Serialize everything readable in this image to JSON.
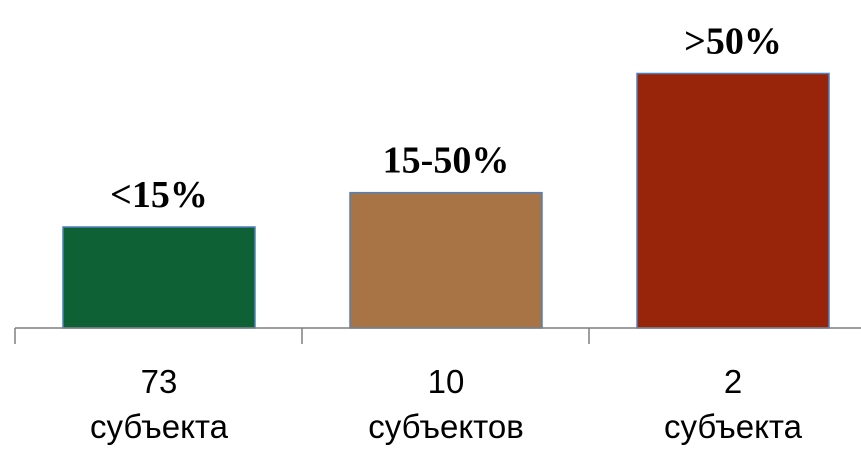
{
  "chart_data": {
    "type": "bar",
    "categories": [
      [
        "73",
        "субъекта"
      ],
      [
        "10",
        "субъектов"
      ],
      [
        "2",
        "субъекта"
      ]
    ],
    "data_labels": [
      "<15%",
      "15-50%",
      ">50%"
    ],
    "values": [
      1,
      1.34,
      2.52
    ],
    "colors": [
      "#0e6135",
      "#a97445",
      "#982509"
    ],
    "bar_border_color": "#4f81bd",
    "axis_color": "#7f7f7f",
    "title": "",
    "xlabel": "",
    "ylabel": "",
    "grid": false,
    "legend": "none"
  }
}
